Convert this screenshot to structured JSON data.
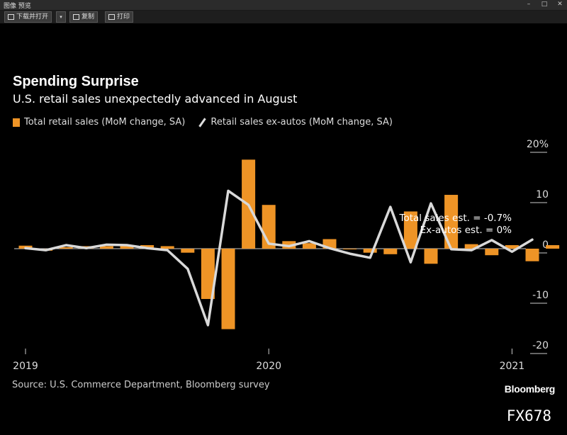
{
  "window": {
    "title": "图像 预览",
    "controls": [
      "–",
      "□",
      "✕"
    ]
  },
  "toolbar": {
    "download_open": "下载并打开",
    "copy": "复制",
    "print": "打印",
    "dropdown": "▾"
  },
  "header": {
    "title": "Spending Surprise",
    "subtitle": "U.S. retail sales unexpectedly advanced in August"
  },
  "legend": {
    "bar": "Total retail sales (MoM change, SA)",
    "line": "Retail sales ex-autos (MoM change, SA)"
  },
  "annotation": {
    "line1": "Total sales est. = -0.7%",
    "line2": "Ex-autos est. = 0%"
  },
  "footer": {
    "source": "Source: U.S. Commerce Department, Bloomberg survey",
    "brand": "Bloomberg",
    "code": "FX678"
  },
  "colors": {
    "bar": "#ee9426",
    "line": "#d9d9d9",
    "background": "#000000"
  },
  "chart_data": {
    "type": "bar",
    "title": "Spending Surprise",
    "subtitle": "U.S. retail sales unexpectedly advanced in August",
    "ylim": [
      -20,
      20
    ],
    "yticks": [
      20,
      10,
      0,
      -10,
      -20
    ],
    "ytick_labels": [
      "20%",
      "10",
      "0",
      "-10",
      "-20"
    ],
    "xticks": [
      {
        "index": 0,
        "label": "2019"
      },
      {
        "index": 12,
        "label": "2020"
      },
      {
        "index": 24,
        "label": "2021"
      }
    ],
    "series": [
      {
        "name": "Total retail sales (MoM change, SA)",
        "type": "bar",
        "values": [
          0.6,
          -0.4,
          0.3,
          0.5,
          0.5,
          0.6,
          0.7,
          0.5,
          -0.8,
          -10,
          -16,
          17.7,
          8.7,
          1.5,
          1.1,
          1.9,
          -0.1,
          -0.8,
          -1.1,
          7.4,
          -3.0,
          10.7,
          0.9,
          -1.3,
          0.7,
          -2.5,
          0.7
        ],
        "labels": [
          "2019-01",
          "2019-02",
          "2019-03",
          "2019-04",
          "2019-05",
          "2019-06",
          "2019-07",
          "2019-08",
          "2019-09",
          "2019-10",
          "2019-11",
          "2019-12",
          "2020-01",
          "2020-02",
          "2020-03",
          "2020-04",
          "2020-05",
          "2020-06",
          "2020-07",
          "2020-08",
          "2020-09",
          "2020-10",
          "2020-11",
          "2020-12",
          "2021-01",
          "2021-02",
          "2021-03"
        ]
      },
      {
        "name": "Retail sales ex-autos (MoM change, SA)",
        "type": "line",
        "values": [
          0.1,
          -0.3,
          0.7,
          0.1,
          0.8,
          0.7,
          0.1,
          -0.3,
          -4.0,
          -15.2,
          11.5,
          8.7,
          1.0,
          0.5,
          1.5,
          0.1,
          -1.0,
          -1.8,
          8.3,
          -2.7,
          9.0,
          -0.1,
          -0.3,
          1.7,
          -0.6,
          1.8
        ],
        "labels": [
          "2019-01",
          "2019-02",
          "2019-03",
          "2019-04",
          "2019-05",
          "2019-06",
          "2019-07",
          "2019-08",
          "2019-09",
          "2019-10",
          "2019-11",
          "2019-12",
          "2020-01",
          "2020-02",
          "2020-03",
          "2020-04",
          "2020-05",
          "2020-06",
          "2020-07",
          "2020-08",
          "2020-09",
          "2020-10",
          "2020-11",
          "2020-12",
          "2021-01",
          "2021-02"
        ]
      }
    ]
  }
}
